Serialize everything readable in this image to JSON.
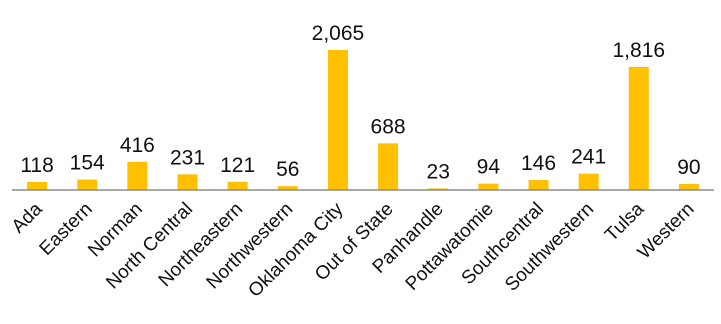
{
  "chart_data": {
    "type": "bar",
    "categories": [
      "Ada",
      "Eastern",
      "Norman",
      "North Central",
      "Northeastern",
      "Northwestern",
      "Oklahoma City",
      "Out of State",
      "Panhandle",
      "Pottawatomie",
      "Southcentral",
      "Southwestern",
      "Tulsa",
      "Western"
    ],
    "values": [
      118,
      154,
      416,
      231,
      121,
      56,
      2065,
      688,
      23,
      94,
      146,
      241,
      1816,
      90
    ],
    "data_labels": [
      "118",
      "154",
      "416",
      "231",
      "121",
      "56",
      "2,065",
      "688",
      "23",
      "94",
      "146",
      "241",
      "1,816",
      "90"
    ],
    "title": "",
    "xlabel": "",
    "ylabel": "",
    "ylim": [
      0,
      2065
    ],
    "grid": false,
    "legend": "none",
    "bar_color": "#FFC000",
    "axis_color": "#8c8c8c"
  }
}
